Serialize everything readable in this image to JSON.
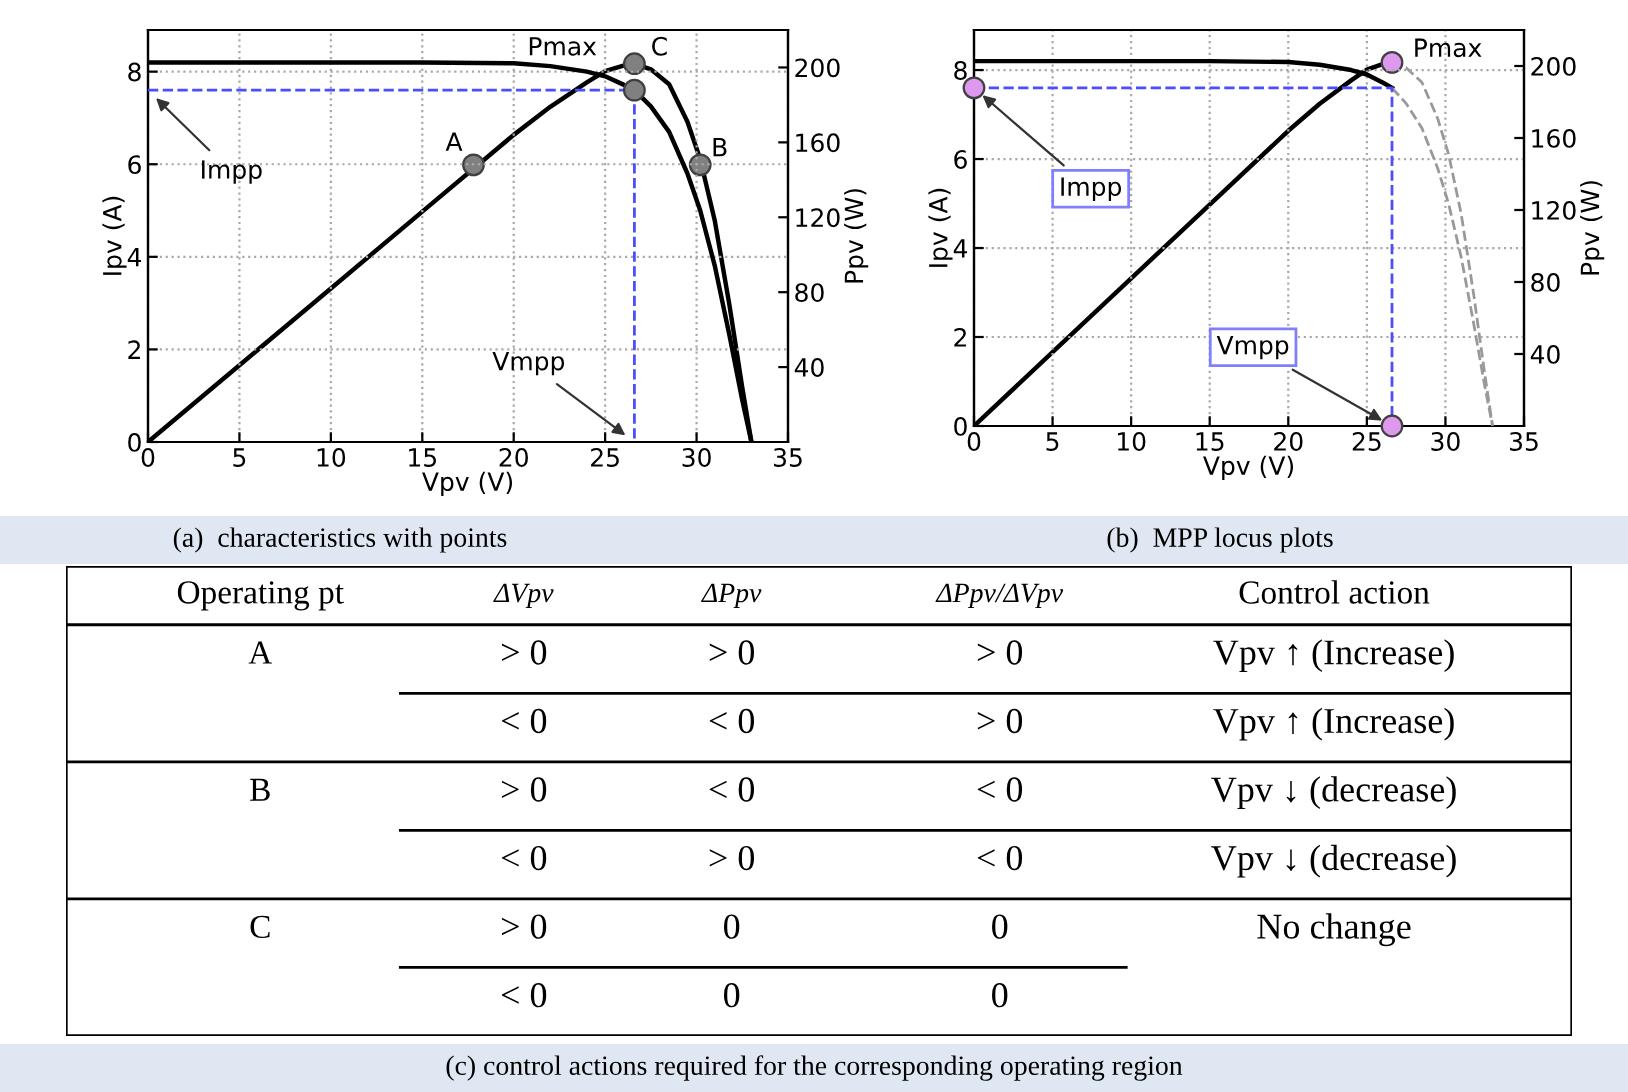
{
  "chart_data": [
    {
      "type": "line",
      "xlabel": "Vpv (V)",
      "ylabel": "Ipv (A)",
      "y2label": "Ppv (W)",
      "xlim": [
        0,
        35
      ],
      "ylim": [
        0,
        8.9
      ],
      "y2lim": [
        0,
        220
      ],
      "xticks": [
        0,
        5,
        10,
        15,
        20,
        25,
        30,
        35
      ],
      "yticks": [
        0,
        2,
        4,
        6,
        8
      ],
      "y2ticks": [
        40,
        80,
        120,
        160,
        200
      ],
      "grid": true,
      "series": [
        {
          "type": "line",
          "color": "#000000",
          "x": [
            0,
            5,
            10,
            15,
            20,
            22,
            24,
            25,
            26,
            26.6,
            27.5,
            28.5,
            29.5,
            30.2,
            31,
            31.8,
            32.5,
            33
          ],
          "values": [
            8.2,
            8.2,
            8.2,
            8.2,
            8.18,
            8.12,
            8.0,
            7.9,
            7.72,
            7.6,
            7.25,
            6.7,
            5.8,
            5.0,
            3.8,
            2.3,
            0.9,
            0
          ]
        },
        {
          "type": "line",
          "axis": "y2",
          "color": "#000000",
          "x": [
            0,
            5,
            10,
            15,
            20,
            22,
            24,
            25,
            26,
            26.6,
            27.5,
            28.5,
            29.5,
            30.2,
            31,
            31.8,
            32.5,
            33
          ],
          "values": [
            0,
            41,
            82,
            123,
            164,
            179,
            192,
            198,
            201,
            202,
            199,
            191,
            171,
            151,
            118,
            73,
            29,
            0
          ]
        },
        {
          "type": "line",
          "line_style": "dashed",
          "color": "#4d4dff",
          "x": [
            0,
            26.6,
            26.6
          ],
          "values": [
            7.6,
            7.6,
            0
          ]
        },
        {
          "type": "scatter",
          "axis": "y2",
          "color": "#808080",
          "x": [
            17.8,
            26.6,
            30.2
          ],
          "values": [
            148,
            202,
            148
          ]
        },
        {
          "type": "scatter",
          "color": "#808080",
          "x": [
            26.6
          ],
          "values": [
            7.6
          ]
        }
      ],
      "annotations": [
        {
          "text": "A",
          "x": 17.8,
          "y": 6
        },
        {
          "text": "C",
          "x": 26.6,
          "y": 8.18
        },
        {
          "text": "B",
          "x": 30.2,
          "y": 6
        },
        {
          "text": "Pmax",
          "x": 26.6,
          "y": 8.18
        },
        {
          "text": "Impp",
          "x": 0,
          "y": 7.6
        },
        {
          "text": "Vmpp",
          "x": 26.6,
          "y": 0
        },
        "(a)  characteristics with points"
      ]
    },
    {
      "type": "line",
      "xlabel": "Vpv (V)",
      "ylabel": "Ipv (A)",
      "y2label": "Ppv (W)",
      "xlim": [
        0,
        35
      ],
      "ylim": [
        0,
        8.9
      ],
      "y2lim": [
        0,
        220
      ],
      "xticks": [
        0,
        5,
        10,
        15,
        20,
        25,
        30,
        35
      ],
      "yticks": [
        0,
        2,
        4,
        6,
        8
      ],
      "y2ticks": [
        40,
        80,
        120,
        160,
        200
      ],
      "grid": true,
      "series": [
        {
          "type": "line",
          "color": "#000000",
          "x": [
            0,
            5,
            10,
            15,
            20,
            22,
            24,
            25,
            26,
            26.6
          ],
          "values": [
            8.2,
            8.2,
            8.2,
            8.2,
            8.18,
            8.12,
            8.0,
            7.9,
            7.72,
            7.6
          ]
        },
        {
          "type": "line",
          "axis": "y2",
          "color": "#000000",
          "x": [
            0,
            5,
            10,
            15,
            20,
            22,
            24,
            25,
            26,
            26.6
          ],
          "values": [
            0,
            41,
            82,
            123,
            164,
            179,
            192,
            198,
            201,
            202
          ]
        },
        {
          "type": "line",
          "line_style": "dashed",
          "color": "#999999",
          "x": [
            26.6,
            27.5,
            28.5,
            29.5,
            30.2,
            31,
            31.8,
            32.5,
            33
          ],
          "values": [
            7.6,
            7.25,
            6.7,
            5.8,
            5.0,
            3.8,
            2.3,
            0.9,
            0
          ]
        },
        {
          "type": "line",
          "axis": "y2",
          "line_style": "dashed",
          "color": "#999999",
          "x": [
            26.6,
            27.5,
            28.5,
            29.5,
            30.2,
            31,
            31.8,
            32.5,
            33
          ],
          "values": [
            202,
            199,
            191,
            171,
            151,
            118,
            73,
            29,
            0
          ]
        },
        {
          "type": "line",
          "line_style": "dashed",
          "color": "#4d4dff",
          "x": [
            0,
            26.6,
            26.6
          ],
          "values": [
            7.6,
            7.6,
            0
          ]
        },
        {
          "type": "scatter",
          "color": "#dd99ee",
          "x": [
            0,
            26.6
          ],
          "values": [
            7.6,
            0
          ]
        },
        {
          "type": "scatter",
          "axis": "y2",
          "color": "#dd99ee",
          "x": [
            26.6
          ],
          "values": [
            202
          ]
        }
      ],
      "annotations": [
        {
          "text": "Pmax",
          "x": 26.6,
          "y": 8.18
        },
        {
          "text": "Impp",
          "x": 0,
          "y": 7.6
        },
        {
          "text": "Vmpp",
          "x": 26.6,
          "y": 0
        },
        "(b)  MPP locus plots"
      ]
    },
    {
      "type": "other",
      "categories": [
        "Operating pt",
        "ΔVpv",
        "ΔPpv",
        "ΔPpv/ΔVpv",
        "Control action"
      ],
      "cell_labels": [
        [
          "A",
          "> 0",
          "> 0",
          "> 0",
          "Vpv ↑ (Increase)"
        ],
        [
          null,
          "< 0",
          "< 0",
          "> 0",
          "Vpv ↑ (Increase)"
        ],
        [
          "B",
          "> 0",
          "< 0",
          "< 0",
          "Vpv ↓ (decrease)"
        ],
        [
          null,
          "< 0",
          "> 0",
          "< 0",
          "Vpv ↓ (decrease)"
        ],
        [
          "C",
          "> 0",
          "0",
          "0",
          "No change"
        ],
        [
          null,
          "< 0",
          "0",
          "0",
          null
        ]
      ],
      "annotations": [
        "(c) control actions required for the corresponding operating region"
      ]
    }
  ]
}
